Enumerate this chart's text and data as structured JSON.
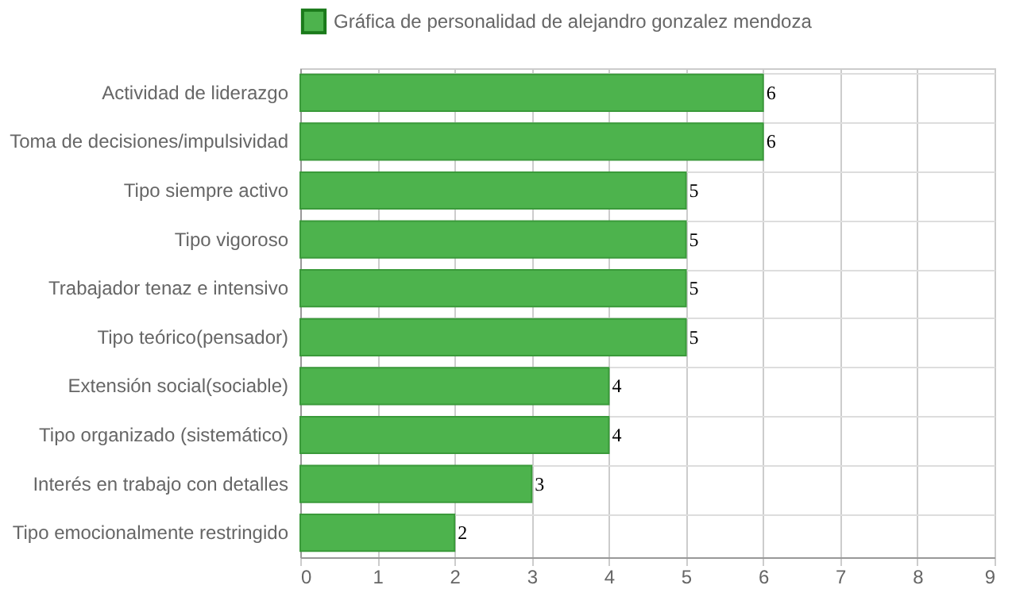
{
  "chart_data": {
    "type": "bar",
    "orientation": "horizontal",
    "categories": [
      "Actividad de liderazgo",
      "Toma de decisiones/impulsividad",
      "Tipo siempre activo",
      "Tipo vigoroso",
      "Trabajador tenaz e intensivo",
      "Tipo teórico(pensador)",
      "Extensión social(sociable)",
      "Tipo organizado (sistemático)",
      "Interés en trabajo con detalles",
      "Tipo emocionalmente restringido"
    ],
    "series": [
      {
        "name": "Gráfica de personalidad de alejandro gonzalez mendoza",
        "color": "#4db34d",
        "values": [
          6,
          6,
          5,
          5,
          5,
          5,
          4,
          4,
          3,
          2
        ]
      }
    ],
    "xlim": [
      0,
      9
    ],
    "xticks": [
      0,
      1,
      2,
      3,
      4,
      5,
      6,
      7,
      8,
      9
    ],
    "grid": true,
    "legend": "top",
    "data_labels": true
  }
}
